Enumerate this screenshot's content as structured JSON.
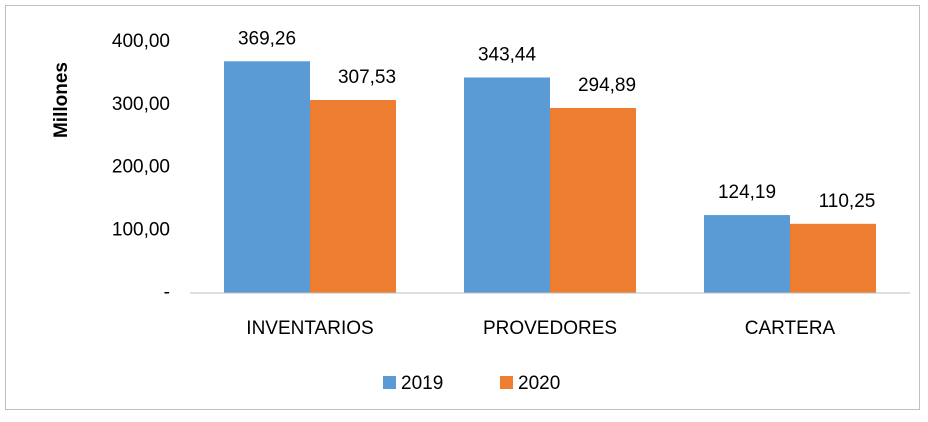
{
  "chart_data": {
    "type": "bar",
    "y_label": "Millones",
    "categories": [
      "INVENTARIOS",
      "PROVEDORES",
      "CARTERA"
    ],
    "series": [
      {
        "name": "2019",
        "color": "#5b9bd5",
        "values": [
          369.26,
          343.44,
          124.19
        ],
        "value_labels": [
          "369,26",
          "343,44",
          "124,19"
        ]
      },
      {
        "name": "2020",
        "color": "#ed7d31",
        "values": [
          307.53,
          294.89,
          110.25
        ],
        "value_labels": [
          "307,53",
          "294,89",
          "110,25"
        ]
      }
    ],
    "ylim": [
      0,
      400
    ],
    "yticks": [
      {
        "value": 0,
        "label": "-"
      },
      {
        "value": 100,
        "label": "100,00"
      },
      {
        "value": 200,
        "label": "200,00"
      },
      {
        "value": 300,
        "label": "300,00"
      },
      {
        "value": 400,
        "label": "400,00"
      }
    ],
    "grid": false,
    "legend": "bottom"
  }
}
